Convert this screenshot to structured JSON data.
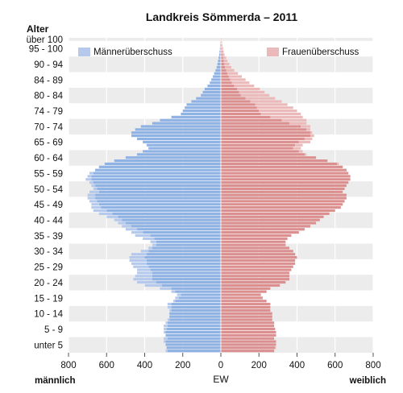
{
  "chart_data": {
    "type": "bar",
    "title": "Landkreis Sömmerda – 2011",
    "y_axis_title": "Alter",
    "xlabel": "EW",
    "left_label": "männlich",
    "right_label": "weiblich",
    "xlim": [
      -800,
      800
    ],
    "x_ticks": [
      800,
      600,
      400,
      200,
      0,
      200,
      400,
      600,
      800
    ],
    "age_ticks": [
      "über 100",
      "95 - 100",
      "90 - 94",
      "84 - 89",
      "80 - 84",
      "74 - 79",
      "70 - 74",
      "65 - 69",
      "60 - 64",
      "55 - 59",
      "50 - 54",
      "45 - 49",
      "40 - 44",
      "35 - 39",
      "30 - 34",
      "25 - 29",
      "20 - 24",
      "15 - 19",
      "10 - 14",
      "5 - 9",
      "unter 5"
    ],
    "legend": [
      {
        "name": "Männerüberschuss",
        "color": "#b4c9ec",
        "position": "top-left"
      },
      {
        "name": "Frauenüberschuss",
        "color": "#ebb9b9",
        "position": "top-right"
      }
    ],
    "colors": {
      "male": "#8fb2e4",
      "female": "#dc8f8f",
      "male_surplus": "#b4c9ec",
      "female_surplus": "#ebb9b9",
      "band": "#ececec"
    },
    "ages_from_100_to_0": [
      100,
      99,
      98,
      97,
      96,
      95,
      94,
      93,
      92,
      91,
      90,
      89,
      88,
      87,
      86,
      85,
      84,
      83,
      82,
      81,
      80,
      79,
      78,
      77,
      76,
      75,
      74,
      73,
      72,
      71,
      70,
      69,
      68,
      67,
      66,
      65,
      64,
      63,
      62,
      61,
      60,
      59,
      58,
      57,
      56,
      55,
      54,
      53,
      52,
      51,
      50,
      49,
      48,
      47,
      46,
      45,
      44,
      43,
      42,
      41,
      40,
      39,
      38,
      37,
      36,
      35,
      34,
      33,
      32,
      31,
      30,
      29,
      28,
      27,
      26,
      25,
      24,
      23,
      22,
      21,
      20,
      19,
      18,
      17,
      16,
      15,
      14,
      13,
      12,
      11,
      10,
      9,
      8,
      7,
      6,
      5,
      4,
      3,
      2,
      1,
      0
    ],
    "series": [
      {
        "name": "männlich",
        "values": [
          2,
          3,
          4,
          5,
          7,
          9,
          12,
          15,
          18,
          22,
          28,
          35,
          42,
          50,
          58,
          70,
          85,
          95,
          105,
          130,
          155,
          180,
          190,
          200,
          210,
          260,
          320,
          360,
          420,
          450,
          470,
          470,
          440,
          410,
          390,
          380,
          410,
          440,
          500,
          560,
          610,
          640,
          660,
          690,
          700,
          710,
          690,
          680,
          670,
          690,
          700,
          700,
          690,
          680,
          680,
          670,
          640,
          600,
          560,
          540,
          520,
          500,
          470,
          450,
          410,
          370,
          360,
          380,
          420,
          470,
          480,
          480,
          470,
          460,
          440,
          440,
          450,
          460,
          440,
          400,
          320,
          260,
          230,
          240,
          250,
          280,
          280,
          270,
          270,
          270,
          280,
          290,
          300,
          300,
          300,
          290,
          300,
          300,
          290,
          285,
          290
        ]
      },
      {
        "name": "weiblich",
        "values": [
          4,
          6,
          8,
          12,
          15,
          20,
          28,
          35,
          45,
          55,
          70,
          90,
          110,
          130,
          150,
          175,
          205,
          230,
          255,
          285,
          320,
          350,
          380,
          400,
          420,
          430,
          450,
          450,
          470,
          470,
          480,
          490,
          480,
          470,
          430,
          420,
          430,
          450,
          500,
          560,
          620,
          640,
          660,
          670,
          680,
          680,
          670,
          660,
          650,
          640,
          660,
          660,
          650,
          640,
          630,
          600,
          570,
          540,
          520,
          500,
          470,
          440,
          410,
          370,
          350,
          340,
          340,
          360,
          380,
          390,
          400,
          390,
          390,
          380,
          370,
          360,
          360,
          360,
          340,
          310,
          260,
          240,
          210,
          220,
          240,
          260,
          260,
          260,
          270,
          270,
          270,
          280,
          280,
          285,
          290,
          290,
          280,
          290,
          290,
          290,
          280
        ]
      }
    ]
  }
}
